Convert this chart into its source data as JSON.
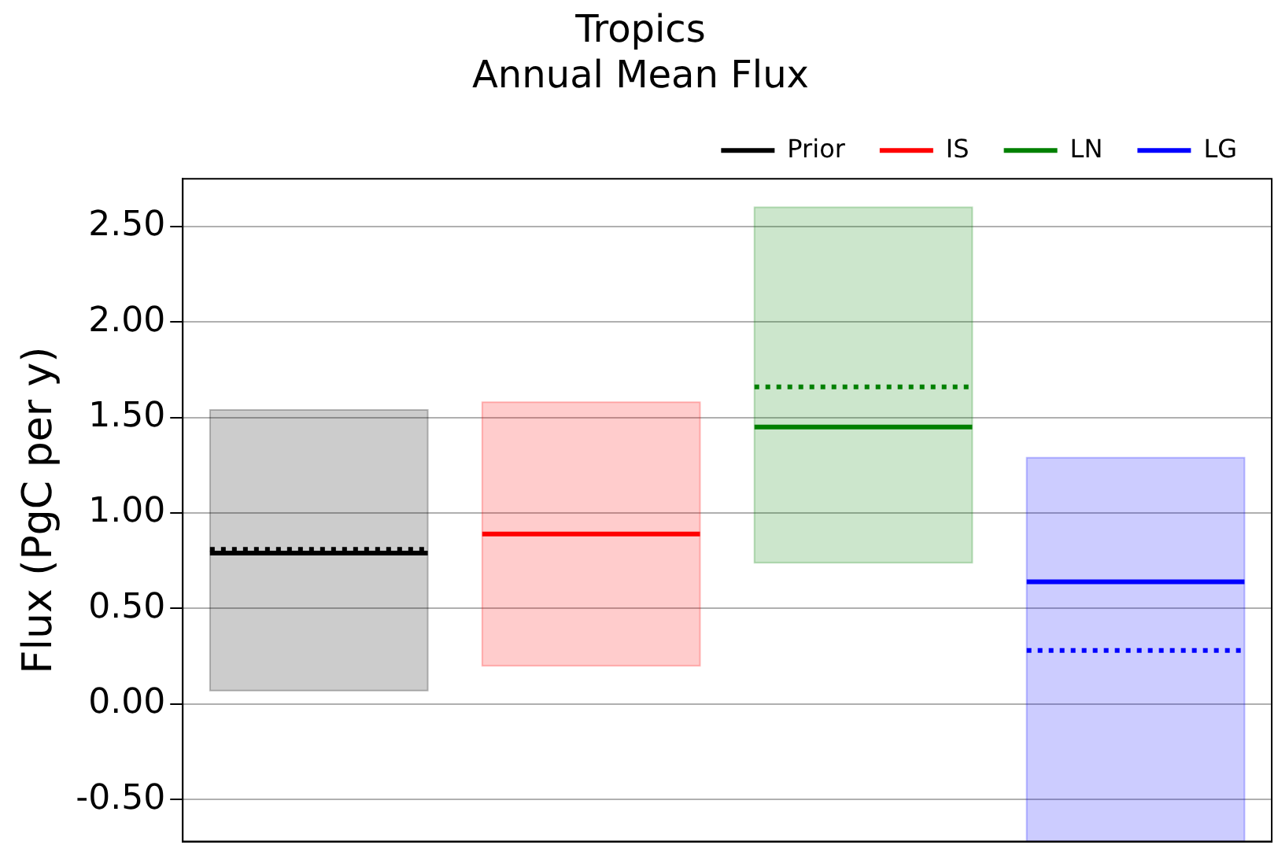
{
  "chart_data": {
    "type": "box",
    "title": "Tropics\nAnnual Mean Flux",
    "ylabel": "Flux (PgC per y)",
    "categories": [
      null,
      null,
      null,
      null
    ],
    "series": [
      {
        "name": "Prior",
        "color": "#000000",
        "boxes": [
          {
            "low": 0.07,
            "q1": 0.07,
            "median": 0.79,
            "q3": 1.54,
            "high": 1.54,
            "mean": 0.81
          },
          null,
          null,
          null
        ]
      },
      {
        "name": "IS",
        "color": "#ff0000",
        "boxes": [
          null,
          {
            "low": 0.2,
            "q1": 0.2,
            "median": 0.89,
            "q3": 1.58,
            "high": 1.58
          },
          null,
          null
        ]
      },
      {
        "name": "LN",
        "color": "#008000",
        "boxes": [
          null,
          null,
          {
            "low": 0.74,
            "q1": 0.74,
            "median": 1.45,
            "q3": 2.6,
            "high": 2.6,
            "mean": 1.66
          },
          null
        ]
      },
      {
        "name": "LG",
        "color": "#0000ff",
        "boxes": [
          null,
          null,
          null,
          {
            "low": -0.72,
            "q1": -0.72,
            "median": 0.64,
            "q3": 1.29,
            "high": 1.29,
            "mean": 0.28
          }
        ]
      }
    ],
    "ylim": [
      -0.72,
      2.75
    ],
    "yticks": [
      {
        "value": -0.5,
        "label": "-0.50"
      },
      {
        "value": 0,
        "label": "0.00"
      },
      {
        "value": 0.5,
        "label": "0.50"
      },
      {
        "value": 1,
        "label": "1.00"
      },
      {
        "value": 1.5,
        "label": "1.50"
      },
      {
        "value": 2,
        "label": "2.00"
      },
      {
        "value": 2.5,
        "label": "2.50"
      }
    ],
    "grid": "y",
    "legend": "top right",
    "tick_labels": "y"
  }
}
